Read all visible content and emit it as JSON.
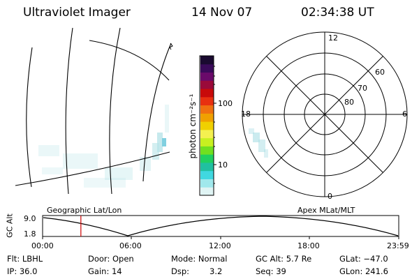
{
  "header": {
    "instrument": "Ultraviolet Imager",
    "date": "14 Nov 07",
    "time": "02:34:38 UT"
  },
  "colorbar": {
    "unit_label": "photon cm⁻²s⁻¹",
    "tick_100": "100",
    "tick_10": "10",
    "colors": [
      "#1a0a30",
      "#3a0a5a",
      "#6a0a6a",
      "#9a0a3a",
      "#c80a0a",
      "#e83010",
      "#f07010",
      "#f0a000",
      "#f0d000",
      "#f4f050",
      "#c8f020",
      "#70e020",
      "#20d060",
      "#20c0a0",
      "#40d8e0",
      "#a0e8ec",
      "#e0f4f4"
    ]
  },
  "polar": {
    "mlt_labels": {
      "top": "12",
      "left": "18",
      "right": "6",
      "bottom": "0"
    },
    "lat_labels": [
      "60",
      "70",
      "80"
    ]
  },
  "map": {
    "left_label": "Geographic Lat/Lon",
    "right_label": "Apex MLat/MLT"
  },
  "altitude_plot": {
    "axis_label": "GC Alt",
    "y_max": "9.0",
    "y_min": "1.8",
    "x_ticks": [
      "00:00",
      "06:00",
      "12:00",
      "18:00",
      "23:59"
    ],
    "current_time_hours": 2.58,
    "marker_color": "#cc0000"
  },
  "info": {
    "flt": "Flt: LBHL",
    "door": "Door: Open",
    "mode": "Mode: Normal",
    "gc_alt": "GC Alt: 5.7 Re",
    "glat": "GLat: −47.0",
    "ip": "IP: 36.0",
    "gain": "Gain: 14",
    "dsp_label": "Dsp:",
    "dsp_value": "3.2",
    "seq": "Seq: 39",
    "glon": "GLon: 241.6"
  }
}
